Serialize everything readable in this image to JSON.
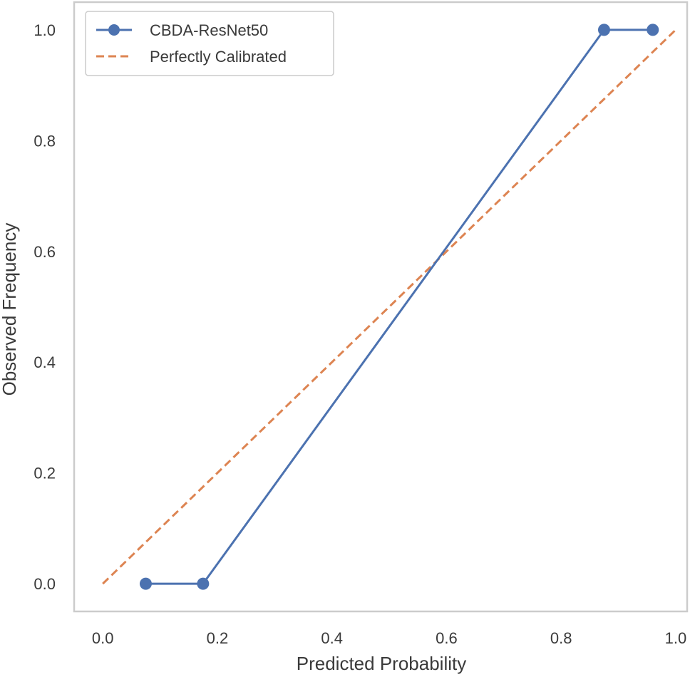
{
  "chart_data": {
    "type": "line",
    "title": "",
    "xlabel": "Predicted Probability",
    "ylabel": "Observed Frequency",
    "xlim": [
      -0.05,
      1.02
    ],
    "ylim": [
      -0.05,
      1.05
    ],
    "xticks": [
      0.0,
      0.2,
      0.4,
      0.6,
      0.8,
      1.0
    ],
    "xtick_labels": [
      "0.0",
      "0.2",
      "0.4",
      "0.6",
      "0.8",
      "1.0"
    ],
    "yticks": [
      0.0,
      0.2,
      0.4,
      0.6,
      0.8,
      1.0
    ],
    "ytick_labels": [
      "0.0",
      "0.2",
      "0.4",
      "0.6",
      "0.8",
      "1.0"
    ],
    "grid": false,
    "legend_position": "upper-left",
    "series": [
      {
        "name": "CBDA-ResNet50",
        "style": "solid-markers",
        "color": "#4c72b0",
        "x": [
          0.075,
          0.175,
          0.875,
          0.96
        ],
        "y": [
          0.0,
          0.0,
          1.0,
          1.0
        ]
      },
      {
        "name": "Perfectly Calibrated",
        "style": "dashed",
        "color": "#dd8452",
        "x": [
          0.0,
          1.0
        ],
        "y": [
          0.0,
          1.0
        ]
      }
    ]
  }
}
